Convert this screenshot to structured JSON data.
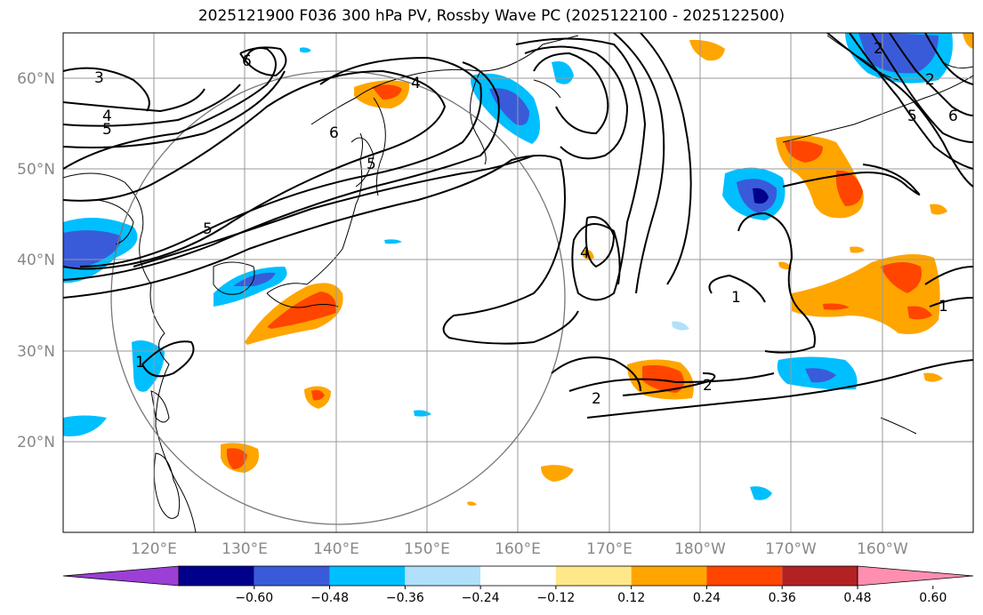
{
  "title": "2025121900 F036 300 hPa PV, Rossby Wave PC (2025122100 - 2025122500)",
  "lat_labels": [
    "60°N",
    "50°N",
    "40°N",
    "30°N",
    "20°N"
  ],
  "lon_labels": [
    "120°E",
    "130°E",
    "140°E",
    "150°E",
    "160°E",
    "170°E",
    "180°W",
    "170°W",
    "160°W"
  ],
  "colorbar": {
    "tick_labels": [
      "−0.60",
      "−0.48",
      "−0.36",
      "−0.24",
      "−0.12",
      "0.12",
      "0.24",
      "0.36",
      "0.48",
      "0.60"
    ],
    "colors": [
      "#9b3fd6",
      "#00008b",
      "#3a5bd9",
      "#00bfff",
      "#b0e0fa",
      "#ffffff",
      "#ffe88a",
      "#ffa500",
      "#ff4500",
      "#b22222",
      "#ff8eb0"
    ]
  },
  "contour_labels": [
    "3",
    "4",
    "5",
    "6",
    "4",
    "6",
    "5",
    "5",
    "2",
    "1",
    "4",
    "1",
    "2",
    "2",
    "6",
    "5",
    "2",
    "1"
  ]
}
